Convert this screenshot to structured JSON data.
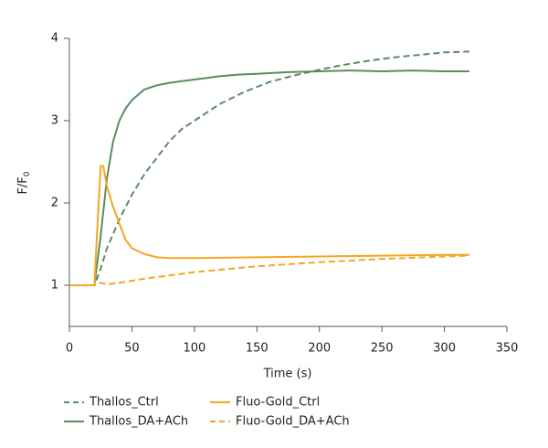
{
  "chart_data": {
    "type": "line",
    "ylabel": "F/F",
    "ylabel_subscript": "0",
    "xlabel": "Time (s)",
    "xlim": [
      0,
      350
    ],
    "xticks": [
      0,
      50,
      100,
      150,
      200,
      250,
      300,
      350
    ],
    "ylim": [
      0.5,
      4
    ],
    "yticks": [
      1,
      2,
      3,
      4
    ],
    "series": [
      {
        "name": "Thallos_Ctrl",
        "color": "#5b8c5f",
        "dashed": true,
        "x": [
          0,
          10,
          20,
          25,
          30,
          40,
          50,
          60,
          70,
          80,
          90,
          100,
          120,
          140,
          160,
          180,
          200,
          220,
          240,
          260,
          280,
          300,
          320
        ],
        "values": [
          1,
          1,
          1,
          1.2,
          1.45,
          1.8,
          2.1,
          2.35,
          2.55,
          2.75,
          2.9,
          3.0,
          3.2,
          3.35,
          3.47,
          3.55,
          3.62,
          3.68,
          3.73,
          3.77,
          3.8,
          3.83,
          3.84
        ]
      },
      {
        "name": "Thallos_DA+ACh",
        "color": "#5b8c5f",
        "dashed": false,
        "x": [
          0,
          10,
          20,
          25,
          30,
          35,
          40,
          45,
          50,
          60,
          70,
          80,
          90,
          100,
          110,
          120,
          135,
          150,
          175,
          200,
          225,
          250,
          275,
          300,
          320
        ],
        "values": [
          1,
          1,
          1,
          1.6,
          2.3,
          2.75,
          3.0,
          3.15,
          3.25,
          3.38,
          3.43,
          3.46,
          3.48,
          3.5,
          3.52,
          3.54,
          3.56,
          3.57,
          3.59,
          3.6,
          3.61,
          3.6,
          3.61,
          3.6,
          3.6
        ]
      },
      {
        "name": "Fluo-Gold_Ctrl",
        "color": "#f5a51f",
        "dashed": false,
        "x": [
          0,
          10,
          20,
          22,
          25,
          27,
          30,
          35,
          40,
          45,
          50,
          60,
          70,
          80,
          100,
          150,
          200,
          250,
          300,
          320
        ],
        "values": [
          1,
          1,
          1,
          1.6,
          2.45,
          2.45,
          2.2,
          1.95,
          1.75,
          1.55,
          1.45,
          1.38,
          1.34,
          1.33,
          1.33,
          1.34,
          1.35,
          1.36,
          1.37,
          1.37
        ]
      },
      {
        "name": "Fluo-Gold_DA+ACh",
        "color": "#f5a51f",
        "dashed": true,
        "x": [
          0,
          10,
          20,
          25,
          30,
          40,
          60,
          80,
          100,
          150,
          200,
          250,
          300,
          320
        ],
        "values": [
          1,
          1,
          1,
          1.03,
          1.01,
          1.03,
          1.08,
          1.12,
          1.16,
          1.23,
          1.28,
          1.32,
          1.35,
          1.36
        ]
      }
    ]
  }
}
